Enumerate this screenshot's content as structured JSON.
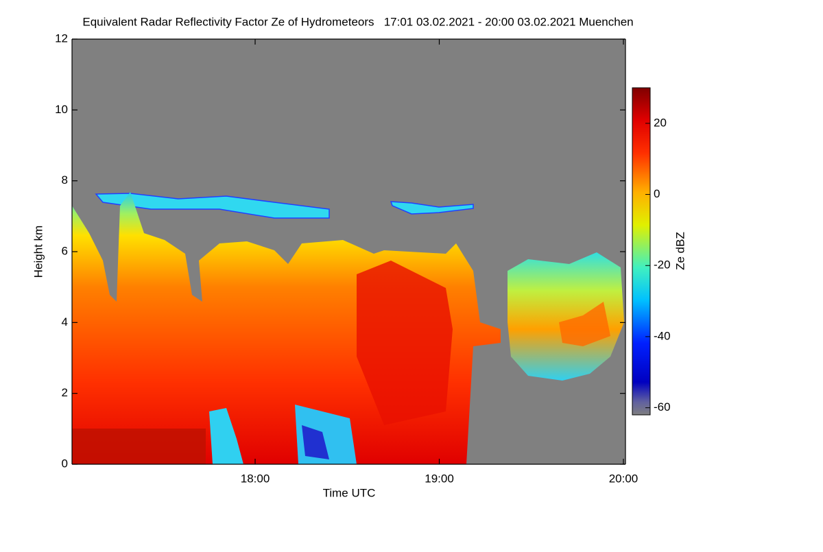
{
  "chart_data": {
    "type": "heatmap",
    "title": "Equivalent Radar Reflectivity Factor Ze of Hydrometeors   17:01 03.02.2021 - 20:00 03.02.2021 Muenchen",
    "x_label": "Time UTC",
    "y_label": "Height km",
    "xlim": [
      1021,
      1200
    ],
    "xticks": [
      {
        "value": 1080,
        "label": "18:00"
      },
      {
        "value": 1140,
        "label": "19:00"
      },
      {
        "value": 1200,
        "label": "20:00"
      }
    ],
    "ylim": [
      0,
      12
    ],
    "yticks": [
      0,
      2,
      4,
      6,
      8,
      10,
      12
    ],
    "colormap": "jet",
    "colorbar": {
      "label": "Ze dBZ",
      "lim": [
        -62,
        30
      ],
      "ticks": [
        -60,
        -40,
        -20,
        0,
        20
      ]
    }
  }
}
